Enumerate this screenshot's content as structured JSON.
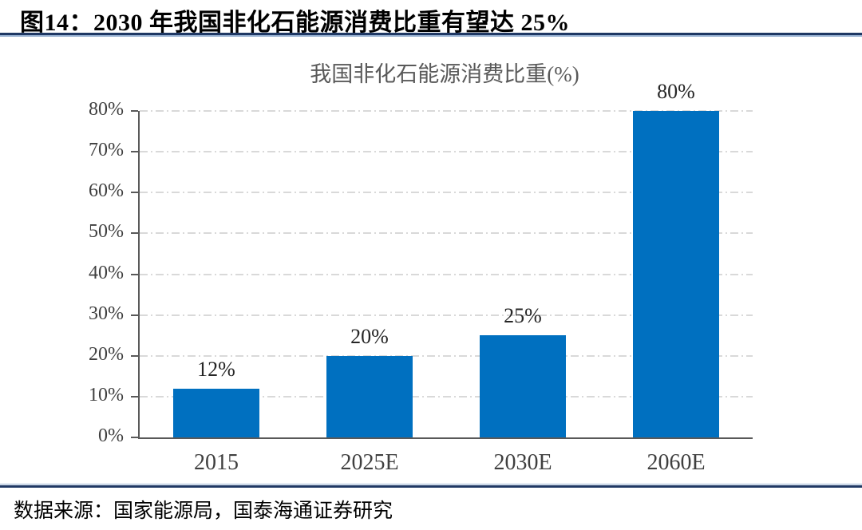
{
  "figure": {
    "title": "图14：2030 年我国非化石能源消费比重有望达 25%",
    "source": "数据来源：国家能源局，国泰海通证券研究"
  },
  "chart_data": {
    "type": "bar",
    "title": "我国非化石能源消费比重(%)",
    "categories": [
      "2015",
      "2025E",
      "2030E",
      "2060E"
    ],
    "values": [
      12,
      20,
      25,
      80
    ],
    "value_labels": [
      "12%",
      "20%",
      "25%",
      "80%"
    ],
    "xlabel": "",
    "ylabel": "",
    "ylim": [
      0,
      80
    ],
    "yticks": [
      0,
      10,
      20,
      30,
      40,
      50,
      60,
      70,
      80
    ],
    "ytick_labels": [
      "0%",
      "10%",
      "20%",
      "30%",
      "40%",
      "50%",
      "60%",
      "70%",
      "80%"
    ],
    "grid": "horizontal dash-dot",
    "legend_position": "none",
    "bar_color": "#0070C0"
  },
  "colors": {
    "bar": "#0070C0",
    "rule_dark": "#1F3864",
    "rule_light": "#95AFD0",
    "axis": "#595959",
    "gridline": "#D9D9D9",
    "tick_label": "#3F3F3F",
    "value_label": "#262626",
    "chart_title": "#595959",
    "background": "#FFFFFF"
  }
}
